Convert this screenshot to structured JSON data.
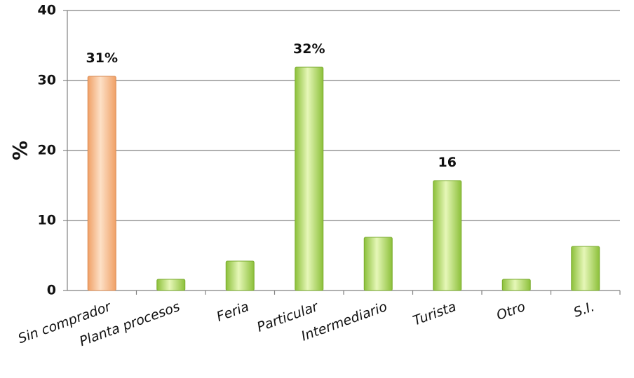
{
  "chart_data": {
    "type": "bar",
    "ylabel": "%",
    "ylim": [
      0,
      40
    ],
    "yticks": [
      "0",
      "10",
      "20",
      "30",
      "40"
    ],
    "grid": true,
    "categories": [
      "Sin comprador",
      "Planta procesos",
      "Feria",
      "Particular",
      "Intermediario",
      "Turista",
      "Otro",
      "S.I."
    ],
    "values": [
      30.6,
      1.6,
      4.2,
      31.9,
      7.6,
      15.7,
      1.6,
      6.3
    ],
    "data_labels": [
      "31%",
      "",
      "",
      "32%",
      "",
      "16",
      "",
      ""
    ],
    "colors": {
      "highlight_bar": "#f6b27e",
      "bar": "#9ccd4a",
      "grid": "#808080",
      "axis": "#808080"
    }
  }
}
